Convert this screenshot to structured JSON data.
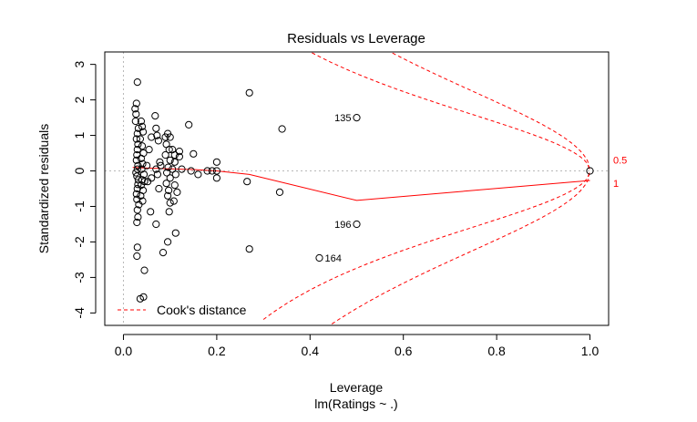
{
  "chart_data": {
    "type": "scatter",
    "title": "Residuals vs Leverage",
    "xlabel": "Leverage",
    "sublabel": "lm(Ratings ~ .)",
    "ylabel": "Standardized residuals",
    "xlim": [
      -0.04,
      1.04
    ],
    "ylim": [
      -4.35,
      3.35
    ],
    "x_ticks": [
      "0.0",
      "0.2",
      "0.4",
      "0.6",
      "0.8",
      "1.0"
    ],
    "x_tick_values": [
      0,
      0.2,
      0.4,
      0.6,
      0.8,
      1.0
    ],
    "y_ticks": [
      "-4",
      "-3",
      "-2",
      "-1",
      "0",
      "1",
      "2",
      "3"
    ],
    "y_tick_values": [
      -4,
      -3,
      -2,
      -1,
      0,
      1,
      2,
      3
    ],
    "legend": {
      "label": "Cook's distance",
      "position": "bottom-left"
    },
    "contour_labels": [
      "0.5",
      "1"
    ],
    "contour_levels": [
      0.5,
      1
    ],
    "n_params": 15,
    "smooth_line": {
      "x": [
        0.02,
        0.05,
        0.1,
        0.15,
        0.2,
        0.27,
        0.5,
        1.0
      ],
      "y": [
        0.1,
        0.08,
        0.06,
        0.04,
        0.0,
        -0.1,
        -0.83,
        -0.27
      ]
    },
    "labels": [
      {
        "text": "135",
        "x": 0.5,
        "y": 1.5,
        "anchor": "left"
      },
      {
        "text": "196",
        "x": 0.5,
        "y": -1.5,
        "anchor": "left"
      },
      {
        "text": "164",
        "x": 0.42,
        "y": -2.45,
        "anchor": "right"
      }
    ],
    "points": [
      [
        0.03,
        2.5
      ],
      [
        0.028,
        1.9
      ],
      [
        0.025,
        1.75
      ],
      [
        0.027,
        1.6
      ],
      [
        0.026,
        1.4
      ],
      [
        0.032,
        1.2
      ],
      [
        0.03,
        1.05
      ],
      [
        0.028,
        0.9
      ],
      [
        0.031,
        0.75
      ],
      [
        0.03,
        0.6
      ],
      [
        0.029,
        0.45
      ],
      [
        0.028,
        0.3
      ],
      [
        0.031,
        0.15
      ],
      [
        0.03,
        0.05
      ],
      [
        0.027,
        -0.05
      ],
      [
        0.029,
        -0.15
      ],
      [
        0.032,
        -0.25
      ],
      [
        0.031,
        -0.38
      ],
      [
        0.03,
        -0.5
      ],
      [
        0.028,
        -0.65
      ],
      [
        0.029,
        -0.8
      ],
      [
        0.033,
        -0.95
      ],
      [
        0.03,
        -1.1
      ],
      [
        0.031,
        -1.3
      ],
      [
        0.029,
        -1.45
      ],
      [
        0.03,
        -2.15
      ],
      [
        0.029,
        -2.4
      ],
      [
        0.036,
        -3.6
      ],
      [
        0.038,
        1.4
      ],
      [
        0.04,
        1.25
      ],
      [
        0.042,
        1.1
      ],
      [
        0.036,
        0.9
      ],
      [
        0.04,
        0.7
      ],
      [
        0.043,
        0.5
      ],
      [
        0.038,
        0.35
      ],
      [
        0.041,
        0.2
      ],
      [
        0.039,
        0.05
      ],
      [
        0.044,
        -0.1
      ],
      [
        0.04,
        -0.25
      ],
      [
        0.038,
        -0.4
      ],
      [
        0.042,
        -0.55
      ],
      [
        0.037,
        -0.7
      ],
      [
        0.041,
        -0.85
      ],
      [
        0.045,
        -0.3
      ],
      [
        0.043,
        -3.55
      ],
      [
        0.045,
        -2.8
      ],
      [
        0.05,
        0.15
      ],
      [
        0.055,
        0.6
      ],
      [
        0.06,
        0.95
      ],
      [
        0.052,
        -0.3
      ],
      [
        0.058,
        -1.15
      ],
      [
        0.06,
        -0.2
      ],
      [
        0.068,
        1.55
      ],
      [
        0.07,
        1.2
      ],
      [
        0.072,
        1.0
      ],
      [
        0.075,
        0.85
      ],
      [
        0.078,
        0.25
      ],
      [
        0.07,
        0.05
      ],
      [
        0.073,
        -0.1
      ],
      [
        0.076,
        -0.5
      ],
      [
        0.07,
        -1.5
      ],
      [
        0.085,
        -2.3
      ],
      [
        0.08,
        0.15
      ],
      [
        0.09,
        0.95
      ],
      [
        0.092,
        0.75
      ],
      [
        0.095,
        1.05
      ],
      [
        0.1,
        0.95
      ],
      [
        0.098,
        0.6
      ],
      [
        0.09,
        0.45
      ],
      [
        0.1,
        0.3
      ],
      [
        0.096,
        0.1
      ],
      [
        0.093,
        -0.05
      ],
      [
        0.1,
        -0.2
      ],
      [
        0.092,
        -0.35
      ],
      [
        0.097,
        -0.55
      ],
      [
        0.095,
        -0.7
      ],
      [
        0.1,
        -0.9
      ],
      [
        0.098,
        -1.15
      ],
      [
        0.095,
        -2.0
      ],
      [
        0.105,
        0.6
      ],
      [
        0.11,
        0.45
      ],
      [
        0.11,
        0.25
      ],
      [
        0.105,
        0.05
      ],
      [
        0.112,
        -0.1
      ],
      [
        0.11,
        -0.4
      ],
      [
        0.115,
        -0.6
      ],
      [
        0.108,
        -0.85
      ],
      [
        0.112,
        -1.75
      ],
      [
        0.12,
        0.55
      ],
      [
        0.12,
        0.4
      ],
      [
        0.14,
        1.3
      ],
      [
        0.15,
        0.48
      ],
      [
        0.125,
        0.05
      ],
      [
        0.145,
        0.0
      ],
      [
        0.16,
        -0.1
      ],
      [
        0.18,
        0.0
      ],
      [
        0.2,
        0.25
      ],
      [
        0.2,
        0.0
      ],
      [
        0.2,
        -0.2
      ],
      [
        0.19,
        0.0
      ],
      [
        0.27,
        2.2
      ],
      [
        0.265,
        -0.3
      ],
      [
        0.27,
        -2.2
      ],
      [
        0.335,
        -0.6
      ],
      [
        0.34,
        1.18
      ],
      [
        0.42,
        -2.45
      ],
      [
        0.5,
        1.5
      ],
      [
        0.5,
        -1.5
      ],
      [
        1.0,
        0.0
      ]
    ]
  }
}
